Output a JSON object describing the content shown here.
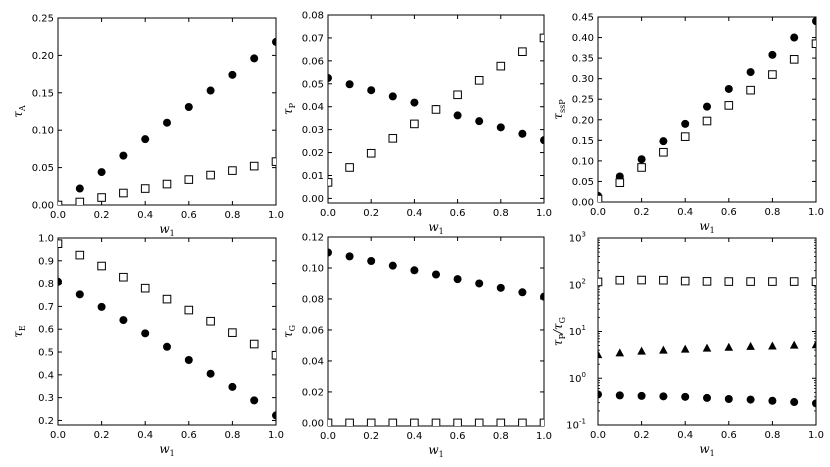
{
  "chart_data": [
    {
      "type": "scatter",
      "xlabel": "w",
      "xlabel_sub": "1",
      "ylabel": "τ",
      "ylabel_sub": "A",
      "xlim": [
        0,
        1
      ],
      "ylim": [
        0,
        0.25
      ],
      "xticks": [
        "0.0",
        "0.2",
        "0.4",
        "0.6",
        "0.8",
        "1.0"
      ],
      "xtick_values": [
        0,
        0.2,
        0.4,
        0.6,
        0.8,
        1.0
      ],
      "yticks": [
        "0.00",
        "0.05",
        "0.10",
        "0.15",
        "0.20",
        "0.25"
      ],
      "ytick_values": [
        0,
        0.05,
        0.1,
        0.15,
        0.2,
        0.25
      ],
      "series": [
        {
          "marker": "circle",
          "x": [
            0,
            0.1,
            0.2,
            0.3,
            0.4,
            0.5,
            0.6,
            0.7,
            0.8,
            0.9,
            1.0
          ],
          "y": [
            0.0,
            0.022,
            0.044,
            0.066,
            0.088,
            0.11,
            0.131,
            0.153,
            0.174,
            0.196,
            0.218
          ]
        },
        {
          "marker": "square",
          "x": [
            0,
            0.1,
            0.2,
            0.3,
            0.4,
            0.5,
            0.6,
            0.7,
            0.8,
            0.9,
            1.0
          ],
          "y": [
            0.0,
            0.004,
            0.01,
            0.016,
            0.022,
            0.028,
            0.034,
            0.04,
            0.046,
            0.052,
            0.058
          ]
        }
      ]
    },
    {
      "type": "scatter",
      "xlabel": "w",
      "xlabel_sub": "1",
      "ylabel": "τ",
      "ylabel_sub": "P",
      "xlim": [
        0,
        1
      ],
      "ylim": [
        -0.002,
        0.08
      ],
      "xticks": [
        "0.0",
        "0.2",
        "0.4",
        "0.6",
        "0.8",
        "1.0"
      ],
      "xtick_values": [
        0,
        0.2,
        0.4,
        0.6,
        0.8,
        1.0
      ],
      "yticks": [
        "0.00",
        "0.01",
        "0.02",
        "0.03",
        "0.04",
        "0.05",
        "0.06",
        "0.07",
        "0.08"
      ],
      "ytick_values": [
        0,
        0.01,
        0.02,
        0.03,
        0.04,
        0.05,
        0.06,
        0.07,
        0.08
      ],
      "series": [
        {
          "marker": "circle",
          "x": [
            0,
            0.1,
            0.2,
            0.3,
            0.4,
            0.5,
            0.6,
            0.7,
            0.8,
            0.9,
            1.0
          ],
          "y": [
            0.0525,
            0.0498,
            0.0472,
            0.0445,
            0.0418,
            0.039,
            0.0362,
            0.0337,
            0.031,
            0.0282,
            0.0254
          ]
        },
        {
          "marker": "square",
          "x": [
            0,
            0.1,
            0.2,
            0.3,
            0.4,
            0.5,
            0.6,
            0.7,
            0.8,
            0.9,
            1.0
          ],
          "y": [
            0.007,
            0.0135,
            0.0197,
            0.0262,
            0.0325,
            0.0388,
            0.0452,
            0.0515,
            0.0577,
            0.064,
            0.07
          ]
        }
      ]
    },
    {
      "type": "scatter",
      "xlabel": "w",
      "xlabel_sub": "1",
      "ylabel": "τ",
      "ylabel_sub": "ssP",
      "xlim": [
        0,
        1
      ],
      "ylim": [
        0,
        0.45
      ],
      "xticks": [
        "0.0",
        "0.2",
        "0.4",
        "0.6",
        "0.8",
        "1.0"
      ],
      "xtick_values": [
        0,
        0.2,
        0.4,
        0.6,
        0.8,
        1.0
      ],
      "yticks": [
        "0.00",
        "0.05",
        "0.10",
        "0.15",
        "0.20",
        "0.25",
        "0.30",
        "0.35",
        "0.40",
        "0.45"
      ],
      "ytick_values": [
        0,
        0.05,
        0.1,
        0.15,
        0.2,
        0.25,
        0.3,
        0.35,
        0.4,
        0.45
      ],
      "series": [
        {
          "marker": "circle",
          "x": [
            0,
            0.1,
            0.2,
            0.3,
            0.4,
            0.5,
            0.6,
            0.7,
            0.8,
            0.9,
            1.0
          ],
          "y": [
            0.015,
            0.062,
            0.104,
            0.148,
            0.19,
            0.232,
            0.275,
            0.316,
            0.358,
            0.4,
            0.44
          ]
        },
        {
          "marker": "square",
          "x": [
            0,
            0.1,
            0.2,
            0.3,
            0.4,
            0.5,
            0.6,
            0.7,
            0.8,
            0.9,
            1.0
          ],
          "y": [
            0.007,
            0.047,
            0.084,
            0.121,
            0.159,
            0.197,
            0.235,
            0.272,
            0.31,
            0.347,
            0.385
          ]
        }
      ]
    },
    {
      "type": "scatter",
      "xlabel": "w",
      "xlabel_sub": "1",
      "ylabel": "τ",
      "ylabel_sub": "E",
      "xlim": [
        0,
        1
      ],
      "ylim": [
        0.18,
        1.0
      ],
      "xticks": [
        "0.0",
        "0.2",
        "0.4",
        "0.6",
        "0.8",
        "1.0"
      ],
      "xtick_values": [
        0,
        0.2,
        0.4,
        0.6,
        0.8,
        1.0
      ],
      "yticks": [
        "0.2",
        "0.3",
        "0.4",
        "0.5",
        "0.6",
        "0.7",
        "0.8",
        "0.9",
        "1.0"
      ],
      "ytick_values": [
        0.2,
        0.3,
        0.4,
        0.5,
        0.6,
        0.7,
        0.8,
        0.9,
        1.0
      ],
      "series": [
        {
          "marker": "circle",
          "x": [
            0,
            0.1,
            0.2,
            0.3,
            0.4,
            0.5,
            0.6,
            0.7,
            0.8,
            0.9,
            1.0
          ],
          "y": [
            0.808,
            0.753,
            0.698,
            0.64,
            0.582,
            0.523,
            0.465,
            0.405,
            0.347,
            0.288,
            0.222
          ]
        },
        {
          "marker": "square",
          "x": [
            0,
            0.1,
            0.2,
            0.3,
            0.4,
            0.5,
            0.6,
            0.7,
            0.8,
            0.9,
            1.0
          ],
          "y": [
            0.975,
            0.925,
            0.877,
            0.828,
            0.78,
            0.732,
            0.684,
            0.635,
            0.585,
            0.535,
            0.486
          ]
        }
      ]
    },
    {
      "type": "scatter",
      "xlabel": "w",
      "xlabel_sub": "1",
      "ylabel": "τ",
      "ylabel_sub": "G",
      "xlim": [
        0,
        1
      ],
      "ylim": [
        -0.002,
        0.12
      ],
      "xticks": [
        "0.0",
        "0.2",
        "0.4",
        "0.6",
        "0.8",
        "1.0"
      ],
      "xtick_values": [
        0,
        0.2,
        0.4,
        0.6,
        0.8,
        1.0
      ],
      "yticks": [
        "0.00",
        "0.02",
        "0.04",
        "0.06",
        "0.08",
        "0.10",
        "0.12"
      ],
      "ytick_values": [
        0,
        0.02,
        0.04,
        0.06,
        0.08,
        0.1,
        0.12
      ],
      "series": [
        {
          "marker": "circle",
          "x": [
            0,
            0.1,
            0.2,
            0.3,
            0.4,
            0.5,
            0.6,
            0.7,
            0.8,
            0.9,
            1.0
          ],
          "y": [
            0.11,
            0.1075,
            0.1045,
            0.1015,
            0.0985,
            0.0958,
            0.0928,
            0.09,
            0.0872,
            0.0843,
            0.0815
          ]
        },
        {
          "marker": "square",
          "x": [
            0,
            0.1,
            0.2,
            0.3,
            0.4,
            0.5,
            0.6,
            0.7,
            0.8,
            0.9,
            1.0
          ],
          "y": [
            0.0,
            0.0,
            0.0,
            0.0,
            0.0,
            0.0,
            0.0,
            0.0,
            0.0,
            0.0,
            0.0
          ]
        }
      ]
    },
    {
      "type": "scatter",
      "log_y": true,
      "xlabel": "w",
      "xlabel_sub": "1",
      "ylabel": "τ",
      "ylabel_sub": "P",
      "ylabel_mid": "/τ",
      "ylabel_sub2": "G",
      "xlim": [
        0,
        1
      ],
      "ylim": [
        0.1,
        1000
      ],
      "xticks": [
        "0.0",
        "0.2",
        "0.4",
        "0.6",
        "0.8",
        "1.0"
      ],
      "xtick_values": [
        0,
        0.2,
        0.4,
        0.6,
        0.8,
        1.0
      ],
      "yticks": [
        "10",
        "10",
        "10",
        "10",
        "10"
      ],
      "ytick_exps": [
        "-1",
        "0",
        "1",
        "2",
        "3"
      ],
      "ytick_values": [
        0.1,
        1,
        10,
        100,
        1000
      ],
      "series": [
        {
          "marker": "square",
          "x": [
            0,
            0.1,
            0.2,
            0.3,
            0.4,
            0.5,
            0.6,
            0.7,
            0.8,
            0.9,
            1.0
          ],
          "y": [
            115,
            125,
            126,
            125,
            120,
            118,
            117,
            117,
            117,
            117,
            116
          ]
        },
        {
          "marker": "triangle",
          "x": [
            0,
            0.1,
            0.2,
            0.3,
            0.4,
            0.5,
            0.6,
            0.7,
            0.8,
            0.9,
            1.0
          ],
          "y": [
            3.2,
            3.5,
            3.8,
            4.0,
            4.2,
            4.4,
            4.6,
            4.8,
            4.9,
            5.1,
            5.2
          ]
        },
        {
          "marker": "circle",
          "x": [
            0,
            0.1,
            0.2,
            0.3,
            0.4,
            0.5,
            0.6,
            0.7,
            0.8,
            0.9,
            1.0
          ],
          "y": [
            0.45,
            0.43,
            0.42,
            0.41,
            0.4,
            0.38,
            0.36,
            0.35,
            0.33,
            0.31,
            0.29
          ]
        }
      ]
    }
  ]
}
